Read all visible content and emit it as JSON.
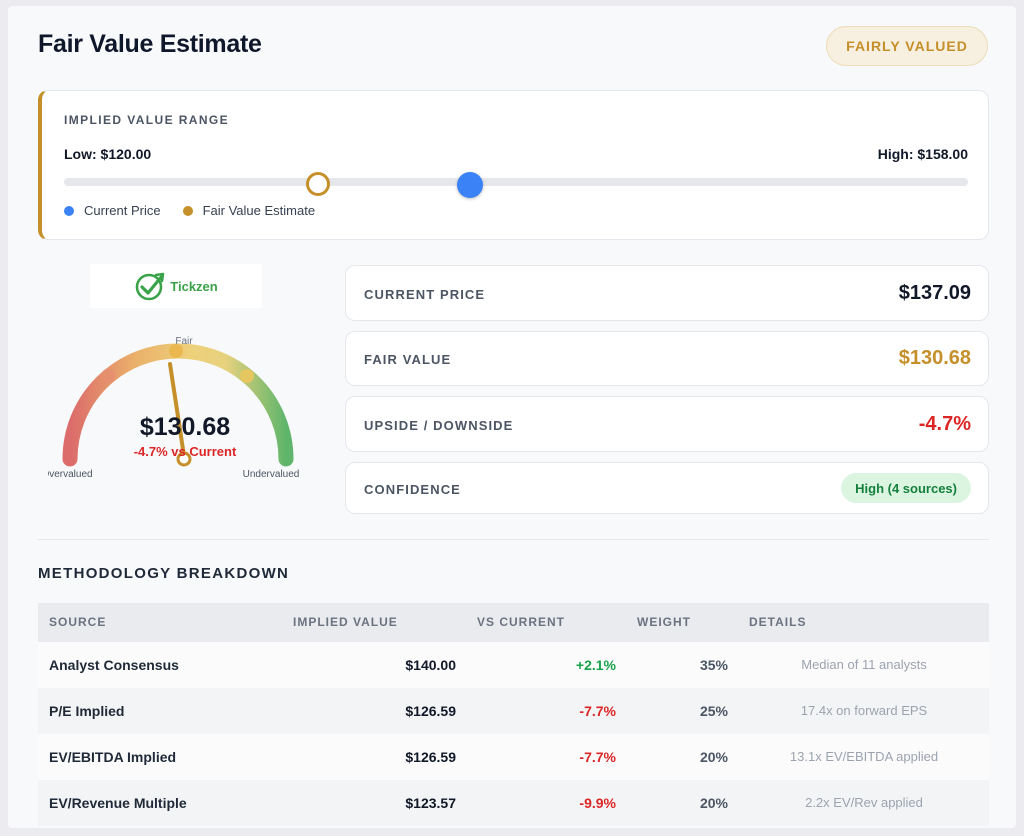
{
  "header": {
    "title": "Fair Value Estimate",
    "status_badge": "FAIRLY VALUED"
  },
  "range": {
    "heading": "IMPLIED VALUE RANGE",
    "low_label": "Low: $120.00",
    "high_label": "High: $158.00",
    "legend": {
      "current": "Current Price",
      "fair": "Fair Value Estimate"
    },
    "colors": {
      "current": "#3b82f6",
      "fair": "#c58f2a"
    }
  },
  "logo": {
    "text": "Tickzen"
  },
  "gauge": {
    "value": "$130.68",
    "delta": "-4.7% vs Current",
    "label_top": "Fair",
    "label_left": "Overvalued",
    "label_right": "Undervalued"
  },
  "metrics": {
    "current_price": {
      "label": "CURRENT PRICE",
      "value": "$137.09"
    },
    "fair_value": {
      "label": "FAIR VALUE",
      "value": "$130.68"
    },
    "upside": {
      "label": "UPSIDE / DOWNSIDE",
      "value": "-4.7%"
    },
    "confidence": {
      "label": "CONFIDENCE",
      "value": "High (4 sources)"
    }
  },
  "methodology": {
    "title": "METHODOLOGY BREAKDOWN",
    "columns": [
      "SOURCE",
      "IMPLIED VALUE",
      "VS CURRENT",
      "WEIGHT",
      "DETAILS"
    ],
    "rows": [
      {
        "source": "Analyst Consensus",
        "value": "$140.00",
        "vs": "+2.1%",
        "weight": "35%",
        "details": "Median of 11 analysts"
      },
      {
        "source": "P/E Implied",
        "value": "$126.59",
        "vs": "-7.7%",
        "weight": "25%",
        "details": "17.4x on forward EPS"
      },
      {
        "source": "EV/EBITDA Implied",
        "value": "$126.59",
        "vs": "-7.7%",
        "weight": "20%",
        "details": "13.1x EV/EBITDA applied"
      },
      {
        "source": "EV/Revenue Multiple",
        "value": "$123.57",
        "vs": "-9.9%",
        "weight": "20%",
        "details": "2.2x EV/Rev applied"
      }
    ]
  }
}
